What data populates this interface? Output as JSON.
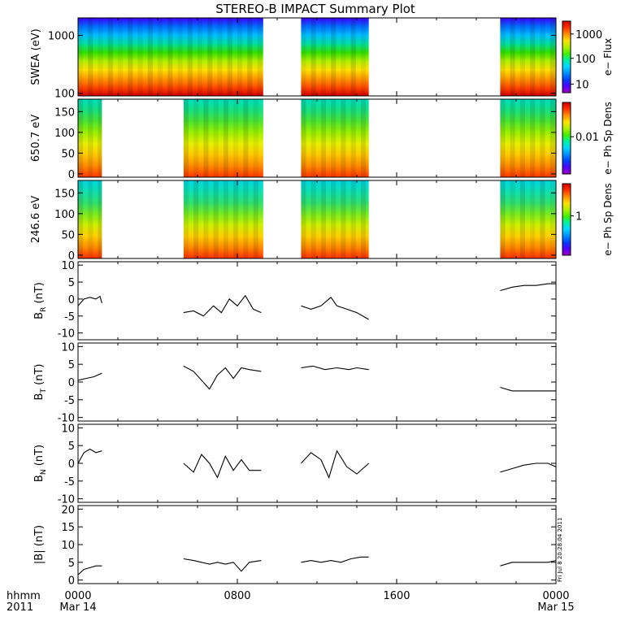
{
  "title": "STEREO-B IMPACT Summary Plot",
  "footer": {
    "left_top": "hhmm",
    "left_bottom": "2011",
    "stamp": "Fri Jul  8 20:28:04 2011"
  },
  "x_axis": {
    "range_hours": [
      0,
      24
    ],
    "ticks": [
      {
        "h": 0,
        "top": "0000",
        "bottom": "Mar 14"
      },
      {
        "h": 8,
        "top": "0800",
        "bottom": ""
      },
      {
        "h": 16,
        "top": "1600",
        "bottom": ""
      },
      {
        "h": 24,
        "top": "0000",
        "bottom": "Mar 15"
      }
    ]
  },
  "spectrograms": [
    {
      "id": "swea",
      "ylabel": "SWEA (eV)",
      "yscale": "log",
      "yrange": [
        90,
        2000
      ],
      "yticks": [
        "100",
        "1000"
      ],
      "ytick_values": [
        100,
        1000
      ],
      "cbar_label": "e− Flux",
      "cbar_ticks": [
        "10",
        "100",
        "1000"
      ],
      "cbar_tick_positions": [
        0.12,
        0.48,
        0.82
      ],
      "data_intervals": [
        [
          0,
          9.3
        ],
        [
          11.2,
          14.6
        ],
        [
          21.2,
          24
        ]
      ],
      "palette": [
        "#d40000",
        "#ff4a00",
        "#ff9a00",
        "#ffe000",
        "#b4f000",
        "#32e000",
        "#00e0a0",
        "#00c0ff",
        "#0070ff",
        "#3c00ff"
      ]
    },
    {
      "id": "pad650",
      "ylabel": "650.7 eV",
      "yscale": "linear",
      "yrange": [
        -8,
        180
      ],
      "yticks": [
        "0",
        "50",
        "100",
        "150"
      ],
      "ytick_values": [
        0,
        50,
        100,
        150
      ],
      "cbar_label": "e− Ph Sp Dens",
      "cbar_ticks": [
        "0.01"
      ],
      "cbar_tick_positions": [
        0.52
      ],
      "data_intervals": [
        [
          0,
          1.2
        ],
        [
          5.3,
          9.3
        ],
        [
          11.2,
          14.6
        ],
        [
          21.2,
          24
        ]
      ],
      "palette": [
        "#ff3800",
        "#ff8a00",
        "#ffc800",
        "#e8f000",
        "#9cf000",
        "#4ce430",
        "#18e080",
        "#00e0c0"
      ]
    },
    {
      "id": "pad246",
      "ylabel": "246.6 eV",
      "yscale": "linear",
      "yrange": [
        -8,
        180
      ],
      "yticks": [
        "0",
        "50",
        "100",
        "150"
      ],
      "ytick_values": [
        0,
        50,
        100,
        150
      ],
      "cbar_label": "e− Ph Sp Dens",
      "cbar_ticks": [
        "1"
      ],
      "cbar_tick_positions": [
        0.55
      ],
      "data_intervals": [
        [
          0,
          1.2
        ],
        [
          5.3,
          9.3
        ],
        [
          11.2,
          14.6
        ],
        [
          21.2,
          24
        ]
      ],
      "palette": [
        "#ff3000",
        "#ff8a00",
        "#ffd000",
        "#d0f000",
        "#78ec20",
        "#30e070",
        "#10e0b0",
        "#00d8e0"
      ]
    }
  ],
  "colorbar_palette": [
    "#a000c0",
    "#5000ff",
    "#0040ff",
    "#0090ff",
    "#00d8ff",
    "#00f0a0",
    "#40f000",
    "#b0f000",
    "#ffe000",
    "#ff9000",
    "#ff3000",
    "#d00000"
  ],
  "chart_data": [
    {
      "type": "line",
      "id": "br",
      "ylabel_main": "B",
      "ylabel_sub": "R",
      "ylabel_unit": "(nT)",
      "ylim": [
        -12,
        11
      ],
      "yticks": [
        -10,
        -5,
        0,
        5,
        10
      ],
      "segments": [
        {
          "x": [
            0.0,
            0.3,
            0.6,
            0.9,
            1.1,
            1.2
          ],
          "y": [
            -2,
            0,
            0.5,
            0,
            0.8,
            -1.2
          ]
        },
        {
          "x": [
            5.3,
            5.8,
            6.3,
            6.8,
            7.2,
            7.6,
            8.0,
            8.4,
            8.8,
            9.2
          ],
          "y": [
            -4,
            -3.5,
            -5,
            -2,
            -4,
            0,
            -2,
            1,
            -3,
            -4
          ]
        },
        {
          "x": [
            11.2,
            11.7,
            12.2,
            12.7,
            13.0,
            13.5,
            14.0,
            14.6
          ],
          "y": [
            -2,
            -3,
            -2,
            0.5,
            -2,
            -3,
            -4,
            -6
          ]
        },
        {
          "x": [
            21.2,
            21.8,
            22.4,
            23.0,
            23.6,
            24.0
          ],
          "y": [
            2.5,
            3.5,
            4,
            4,
            4.5,
            4.5
          ]
        }
      ]
    },
    {
      "type": "line",
      "id": "bt",
      "ylabel_main": "B",
      "ylabel_sub": "T",
      "ylabel_unit": "(nT)",
      "ylim": [
        -11,
        11
      ],
      "yticks": [
        -10,
        -5,
        0,
        5,
        10
      ],
      "segments": [
        {
          "x": [
            0.0,
            0.4,
            0.8,
            1.2
          ],
          "y": [
            0.5,
            1,
            1.5,
            2.5
          ]
        },
        {
          "x": [
            5.3,
            5.8,
            6.2,
            6.6,
            7.0,
            7.4,
            7.8,
            8.2,
            8.6,
            9.2
          ],
          "y": [
            4.5,
            3,
            0.5,
            -2,
            2,
            4,
            1,
            4,
            3.5,
            3
          ]
        },
        {
          "x": [
            11.2,
            11.8,
            12.4,
            13.0,
            13.6,
            14.0,
            14.6
          ],
          "y": [
            4,
            4.5,
            3.5,
            4,
            3.5,
            4,
            3.5
          ]
        },
        {
          "x": [
            21.2,
            21.8,
            22.4,
            23.0,
            23.6,
            24.0
          ],
          "y": [
            -1.5,
            -2.5,
            -2.5,
            -2.5,
            -2.5,
            -2.5
          ]
        }
      ]
    },
    {
      "type": "line",
      "id": "bn",
      "ylabel_main": "B",
      "ylabel_sub": "N",
      "ylabel_unit": "(nT)",
      "ylim": [
        -11,
        11
      ],
      "yticks": [
        -10,
        -5,
        0,
        5,
        10
      ],
      "segments": [
        {
          "x": [
            0.0,
            0.3,
            0.6,
            0.9,
            1.2
          ],
          "y": [
            0,
            3,
            4,
            3,
            3.5
          ]
        },
        {
          "x": [
            5.3,
            5.8,
            6.2,
            6.6,
            7.0,
            7.4,
            7.8,
            8.2,
            8.6,
            9.2
          ],
          "y": [
            0,
            -2.5,
            2.5,
            0,
            -4,
            2,
            -2,
            1,
            -2,
            -2
          ]
        },
        {
          "x": [
            11.2,
            11.7,
            12.2,
            12.6,
            13.0,
            13.5,
            14.0,
            14.6
          ],
          "y": [
            0,
            3,
            1,
            -4,
            3.5,
            -1,
            -3,
            0
          ]
        },
        {
          "x": [
            21.2,
            21.8,
            22.4,
            23.0,
            23.6,
            24.0
          ],
          "y": [
            -2.5,
            -1.5,
            -0.5,
            0,
            0,
            -1
          ]
        }
      ]
    },
    {
      "type": "line",
      "id": "bmag",
      "ylabel_main": "|B|",
      "ylabel_sub": "",
      "ylabel_unit": "(nT)",
      "ylim": [
        -1,
        21
      ],
      "yticks": [
        0,
        5,
        10,
        15,
        20
      ],
      "segments": [
        {
          "x": [
            0.0,
            0.3,
            0.6,
            0.9,
            1.2
          ],
          "y": [
            1.5,
            3,
            3.5,
            4,
            4
          ]
        },
        {
          "x": [
            5.3,
            5.8,
            6.2,
            6.6,
            7.0,
            7.4,
            7.8,
            8.2,
            8.6,
            9.2
          ],
          "y": [
            6,
            5.5,
            5,
            4.5,
            5,
            4.5,
            5,
            2.5,
            5,
            5.5
          ]
        },
        {
          "x": [
            11.2,
            11.7,
            12.2,
            12.7,
            13.2,
            13.7,
            14.2,
            14.6
          ],
          "y": [
            5,
            5.5,
            5,
            5.5,
            5,
            6,
            6.5,
            6.5
          ]
        },
        {
          "x": [
            21.2,
            21.8,
            22.4,
            23.0,
            23.6,
            24.0
          ],
          "y": [
            4,
            5,
            5,
            5,
            5,
            5.5
          ]
        }
      ]
    }
  ]
}
